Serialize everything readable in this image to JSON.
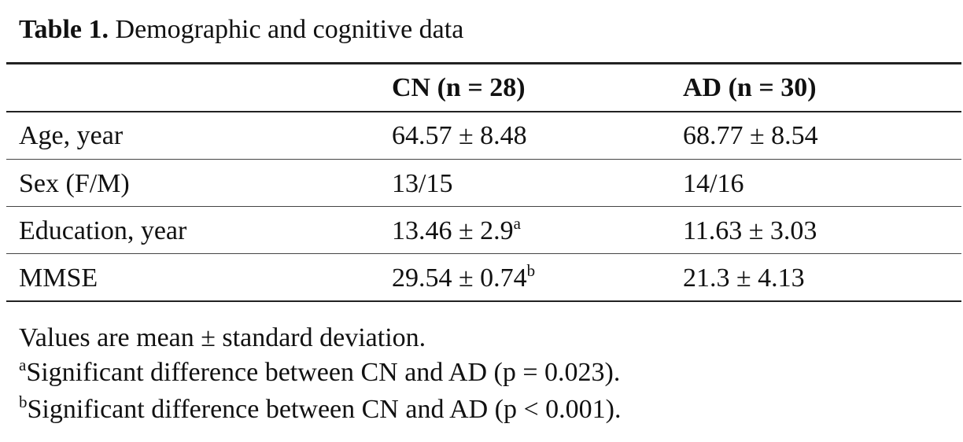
{
  "caption": {
    "label": "Table 1.",
    "text": "Demographic and cognitive data"
  },
  "table": {
    "columns": [
      "",
      "CN (n = 28)",
      "AD (n = 30)"
    ],
    "rows": [
      {
        "label": "Age, year",
        "cn": "64.57 ± 8.48",
        "cn_mark": "",
        "ad": "68.77 ± 8.54"
      },
      {
        "label": "Sex (F/M)",
        "cn": "13/15",
        "cn_mark": "",
        "ad": "14/16"
      },
      {
        "label": "Education, year",
        "cn": "13.46 ± 2.9",
        "cn_mark": "a",
        "ad": "11.63 ± 3.03"
      },
      {
        "label": "MMSE",
        "cn": "29.54 ± 0.74",
        "cn_mark": "b",
        "ad": "21.3 ± 4.13"
      }
    ]
  },
  "footnotes": {
    "values_note": "Values are mean ± standard deviation.",
    "note_a_mark": "a",
    "note_a_text": "Significant difference between CN and AD (p = 0.023).",
    "note_b_mark": "b",
    "note_b_text": "Significant difference between CN and AD (p < 0.001)."
  }
}
